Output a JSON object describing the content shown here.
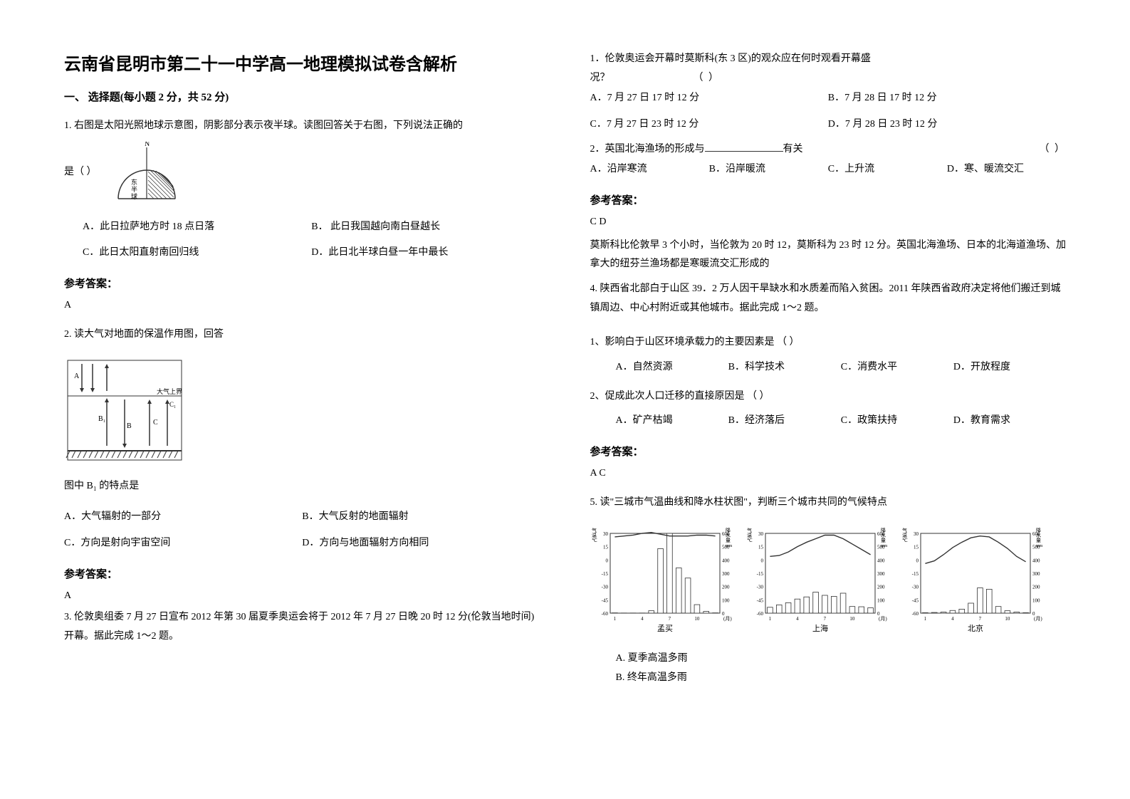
{
  "title": "云南省昆明市第二十一中学高一地理模拟试卷含解析",
  "section1_header": "一、 选择题(每小题 2 分，共 52 分)",
  "q1": {
    "stem_a": "1. 右图是太阳光照地球示意图，阴影部分表示夜半球。读图回答关于右图，下列说法正确的",
    "stem_b": "是（        ）",
    "optA": "A．此日拉萨地方时 18 点日落",
    "optB": "B．  此日我国越向南白昼越长",
    "optC": "C．此日太阳直射南回归线",
    "optD": "D．此日北半球白昼一年中最长",
    "ref": "参考答案：",
    "ans": "A"
  },
  "q2": {
    "stem": "2. 读大气对地面的保温作用图，回答",
    "sub": "图中 B₁ 的特点是",
    "optA": "A．大气辐射的一部分",
    "optB": "B．大气反射的地面辐射",
    "optC": "C．方向是射向宇宙空间",
    "optD": "D．方向与地面辐射方向相同",
    "ref": "参考答案：",
    "ans": "A"
  },
  "q3": {
    "intro": "3. 伦敦奥组委 7 月 27 日宣布 2012 年第 30 届夏季奥运会将于 2012 年 7 月 27 日晚 20 时 12 分(伦敦当地时间)开幕。据此完成 1～2 题。",
    "s1": {
      "stem_a": "1．伦敦奥运会开幕时莫斯科(东 3 区)的观众应在何时观看开幕盛",
      "stem_b": "况？",
      "optA": "A．7 月 27 日 17 时 12 分",
      "optB": "B．7 月 28 日 17 时 12 分",
      "optC": "C．7 月 27 日 23 时 12 分",
      "optD": "D．7 月 28 日 23 时 12 分"
    },
    "s2": {
      "stem_a": "2．英国北海渔场的形成与",
      "stem_b": "有关",
      "optA": "A．沿岸寒流",
      "optB": "B．沿岸暖流",
      "optC": "C．上升流",
      "optD": "D．寒、暖流交汇"
    },
    "ref": "参考答案：",
    "ans": "C  D",
    "explain": "莫斯科比伦敦早 3 个小时，当伦敦为 20 时 12，莫斯科为 23 时 12 分。英国北海渔场、日本的北海道渔场、加拿大的纽芬兰渔场都是寒暖流交汇形成的"
  },
  "q4": {
    "intro": "4. 陕西省北部白于山区 39．2 万人因干旱缺水和水质差而陷入贫困。2011 年陕西省政府决定将他们搬迁到城镇周边、中心村附近或其他城市。据此完成 1～2 题。",
    "s1": {
      "stem": "1、影响白于山区环境承载力的主要因素是      （       ）",
      "optA": "A．自然资源",
      "optB": "B．科学技术",
      "optC": "C．消费水平",
      "optD": "D．开放程度"
    },
    "s2": {
      "stem": "2、促成此次人口迁移的直接原因是       （       ）",
      "optA": "A．矿产枯竭",
      "optB": "B．经济落后",
      "optC": "C．政策扶持",
      "optD": "D．教育需求"
    },
    "ref": "参考答案：",
    "ans": "A  C"
  },
  "q5": {
    "stem": "5. 读\"三城市气温曲线和降水柱状图\"，判断三个城市共同的气候特点",
    "optA": "A. 夏季高温多雨",
    "optB": "B. 终年高温多雨",
    "cities": [
      "孟买",
      "上海",
      "北京"
    ],
    "axis": {
      "temp_label": "气温℃",
      "precip_label": "降水量mm",
      "temp_ticks": [
        -60,
        -45,
        -30,
        -15,
        0,
        15,
        30
      ],
      "precip_ticks": [
        0,
        100,
        200,
        300,
        400,
        500,
        600
      ],
      "x_ticks": [
        1,
        4,
        7,
        10
      ],
      "x_unit": "(月)"
    },
    "colors": {
      "border": "#333333",
      "bar_fill": "#ffffff",
      "bar_stroke": "#333333",
      "line_stroke": "#333333",
      "bg": "#ffffff"
    },
    "mumbai": {
      "temp": [
        26,
        27,
        28,
        30,
        31,
        29,
        27,
        27,
        27,
        28,
        28,
        27
      ],
      "precip": [
        2,
        1,
        1,
        1,
        18,
        485,
        617,
        340,
        264,
        64,
        13,
        2
      ]
    },
    "shanghai": {
      "temp": [
        4,
        5,
        9,
        15,
        20,
        24,
        28,
        28,
        24,
        18,
        12,
        6
      ],
      "precip": [
        44,
        62,
        78,
        106,
        122,
        158,
        134,
        126,
        150,
        50,
        48,
        40
      ]
    },
    "beijing": {
      "temp": [
        -4,
        -1,
        6,
        14,
        20,
        25,
        27,
        26,
        20,
        13,
        4,
        -2
      ],
      "precip": [
        3,
        5,
        8,
        20,
        30,
        75,
        190,
        180,
        50,
        18,
        8,
        3
      ]
    }
  },
  "figures": {
    "globe_label_n": "N",
    "globe_label_east": "东半球"
  }
}
